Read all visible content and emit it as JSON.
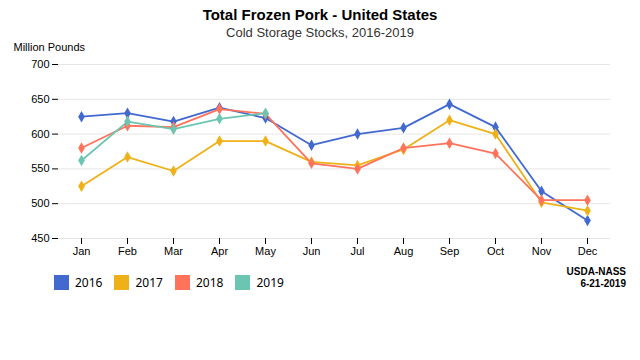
{
  "chart_data": {
    "type": "line",
    "title": "Total Frozen Pork - United States",
    "subtitle": "Cold Storage Stocks, 2016-2019",
    "y_label": "Million Pounds",
    "categories": [
      "Jan",
      "Feb",
      "Mar",
      "Apr",
      "May",
      "Jun",
      "Jul",
      "Aug",
      "Sep",
      "Oct",
      "Nov",
      "Dec"
    ],
    "series": [
      {
        "name": "2016",
        "values": [
          625,
          630,
          618,
          638,
          623,
          584,
          600,
          609,
          643,
          610,
          518,
          476
        ]
      },
      {
        "name": "2017",
        "values": [
          525,
          567,
          547,
          590,
          590,
          560,
          555,
          578,
          620,
          600,
          502,
          490
        ]
      },
      {
        "name": "2018",
        "values": [
          580,
          612,
          610,
          636,
          629,
          558,
          550,
          580,
          587,
          572,
          505,
          505
        ]
      },
      {
        "name": "2019",
        "values": [
          562,
          618,
          607,
          622,
          630,
          null,
          null,
          null,
          null,
          null,
          null,
          null
        ]
      }
    ],
    "ylim": [
      450,
      700
    ],
    "yticks": [
      450,
      500,
      550,
      600,
      650,
      700
    ],
    "grid": true,
    "legend": "bottom",
    "marker": "diamond",
    "annotations": [
      "USDA-NASS",
      "6-21-2019"
    ]
  }
}
